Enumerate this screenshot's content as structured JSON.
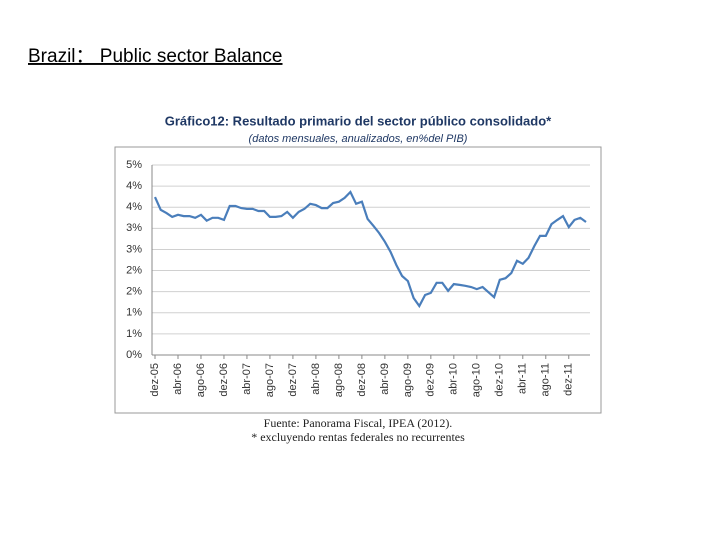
{
  "slide_title": "Brazil： Public sector Balance",
  "chart_data": {
    "type": "line",
    "title": "Gráfico12: Resultado primario del sector público consolidado*",
    "subtitle": "(datos mensuales, anualizados, en%del PIB)",
    "source": "Fuente: Panorama Fiscal, IPEA (2012).",
    "note": "* excluyendo rentas federales no recurrentes",
    "categories": [
      "dez-05",
      null,
      null,
      null,
      "abr-06",
      null,
      null,
      null,
      "ago-06",
      null,
      null,
      null,
      "dez-06",
      null,
      null,
      null,
      "abr-07",
      null,
      null,
      null,
      "ago-07",
      null,
      null,
      null,
      "dez-07",
      null,
      null,
      null,
      "abr-08",
      null,
      null,
      null,
      "ago-08",
      null,
      null,
      null,
      "dez-08",
      null,
      null,
      null,
      "abr-09",
      null,
      null,
      null,
      "ago-09",
      null,
      null,
      null,
      "dez-09",
      null,
      null,
      null,
      "abr-10",
      null,
      null,
      null,
      "ago-10",
      null,
      null,
      null,
      "dez-10",
      null,
      null,
      null,
      "abr-11",
      null,
      null,
      null,
      "ago-11",
      null,
      null,
      null,
      "dez-11",
      null,
      null,
      null
    ],
    "series": [
      {
        "name": "Resultado primario",
        "color": "#4a7ebb",
        "values": [
          3.74,
          3.44,
          3.36,
          3.27,
          3.32,
          3.29,
          3.29,
          3.25,
          3.32,
          3.18,
          3.25,
          3.25,
          3.2,
          3.53,
          3.53,
          3.48,
          3.46,
          3.46,
          3.41,
          3.41,
          3.27,
          3.27,
          3.29,
          3.39,
          3.25,
          3.39,
          3.46,
          3.58,
          3.55,
          3.48,
          3.48,
          3.6,
          3.63,
          3.72,
          3.86,
          3.58,
          3.63,
          3.22,
          3.06,
          2.89,
          2.68,
          2.44,
          2.13,
          1.87,
          1.75,
          1.35,
          1.16,
          1.42,
          1.47,
          1.71,
          1.71,
          1.52,
          1.68,
          1.66,
          1.64,
          1.61,
          1.56,
          1.61,
          1.49,
          1.37,
          1.78,
          1.82,
          1.94,
          2.23,
          2.16,
          2.3,
          2.58,
          2.82,
          2.82,
          3.1,
          3.2,
          3.29,
          3.03,
          3.2,
          3.25,
          3.15
        ]
      }
    ],
    "ylim": [
      0,
      4.5
    ],
    "yticks": [
      {
        "value": 0,
        "label": "0%"
      },
      {
        "value": 0.5,
        "label": "1%"
      },
      {
        "value": 1,
        "label": "1%"
      },
      {
        "value": 1.5,
        "label": "2%"
      },
      {
        "value": 2,
        "label": "2%"
      },
      {
        "value": 2.5,
        "label": "3%"
      },
      {
        "value": 3,
        "label": "3%"
      },
      {
        "value": 3.5,
        "label": "4%"
      },
      {
        "value": 4,
        "label": "4%"
      },
      {
        "value": 4.5,
        "label": "5%"
      }
    ],
    "grid": true
  }
}
